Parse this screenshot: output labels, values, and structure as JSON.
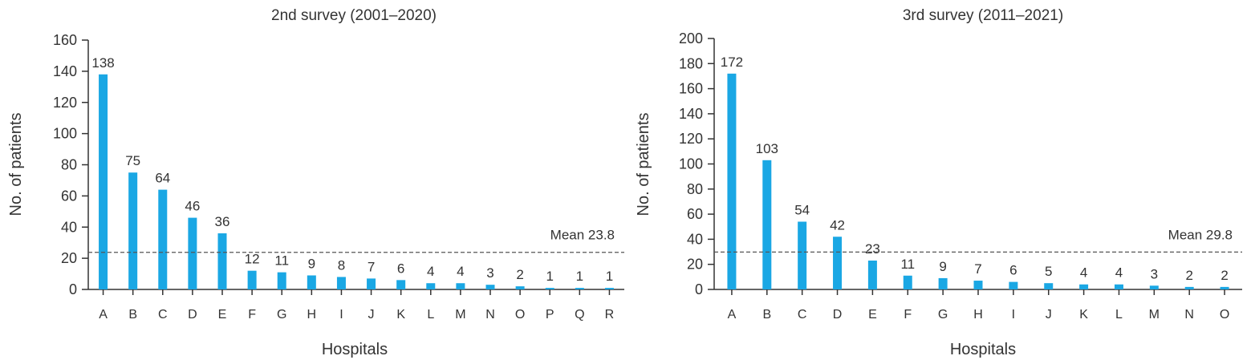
{
  "chart_data": [
    {
      "type": "bar",
      "title": "2nd survey (2001–2020)",
      "xlabel": "Hospitals",
      "ylabel": "No. of patients",
      "categories": [
        "A",
        "B",
        "C",
        "D",
        "E",
        "F",
        "G",
        "H",
        "I",
        "J",
        "K",
        "L",
        "M",
        "N",
        "O",
        "P",
        "Q",
        "R"
      ],
      "values": [
        138,
        75,
        64,
        46,
        36,
        12,
        11,
        9,
        8,
        7,
        6,
        4,
        4,
        3,
        2,
        1,
        1,
        1
      ],
      "ylim": [
        0,
        160
      ],
      "yticks": [
        0,
        20,
        40,
        60,
        80,
        100,
        120,
        140,
        160
      ],
      "mean": 23.8,
      "mean_label": "Mean 23.8",
      "bar_color": "#1aa7e4"
    },
    {
      "type": "bar",
      "title": "3rd survey (2011–2021)",
      "xlabel": "Hospitals",
      "ylabel": "No. of patients",
      "categories": [
        "A",
        "B",
        "C",
        "D",
        "E",
        "F",
        "G",
        "H",
        "I",
        "J",
        "K",
        "L",
        "M",
        "N",
        "O"
      ],
      "values": [
        172,
        103,
        54,
        42,
        23,
        11,
        9,
        7,
        6,
        5,
        4,
        4,
        3,
        2,
        2
      ],
      "ylim": [
        0,
        200
      ],
      "yticks": [
        0,
        20,
        40,
        60,
        80,
        100,
        120,
        140,
        160,
        180,
        200
      ],
      "mean": 29.8,
      "mean_label": "Mean 29.8",
      "bar_color": "#1aa7e4"
    }
  ]
}
